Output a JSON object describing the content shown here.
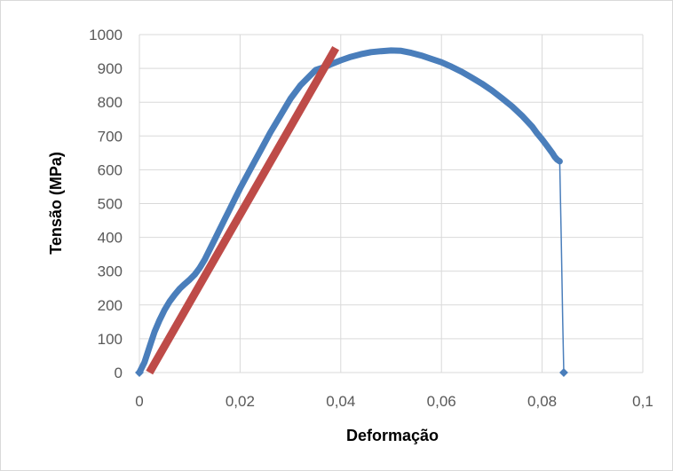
{
  "chart_data": {
    "type": "scatter",
    "title": "",
    "xlabel": "Deformação",
    "ylabel": "Tensão (MPa)",
    "xlim": [
      0,
      0.1
    ],
    "ylim": [
      0,
      1000
    ],
    "x_ticks": [
      0,
      0.02,
      0.04,
      0.06,
      0.08,
      0.1
    ],
    "x_tick_labels": [
      "0",
      "0,02",
      "0,04",
      "0,06",
      "0,08",
      "0,1"
    ],
    "y_ticks": [
      0,
      100,
      200,
      300,
      400,
      500,
      600,
      700,
      800,
      900,
      1000
    ],
    "y_tick_labels": [
      "0",
      "100",
      "200",
      "300",
      "400",
      "500",
      "600",
      "700",
      "800",
      "900",
      "1000"
    ],
    "grid": true,
    "legend": "none",
    "series": [
      {
        "color": "#4a7ebb",
        "style": "scatter-with-line",
        "x": [
          0,
          0.001,
          0.002,
          0.003,
          0.004,
          0.005,
          0.006,
          0.007,
          0.008,
          0.009,
          0.01,
          0.011,
          0.012,
          0.013,
          0.014,
          0.015,
          0.016,
          0.017,
          0.018,
          0.019,
          0.02,
          0.022,
          0.024,
          0.026,
          0.028,
          0.03,
          0.032,
          0.034,
          0.035,
          0.036,
          0.037,
          0.038,
          0.039,
          0.04,
          0.042,
          0.044,
          0.046,
          0.048,
          0.05,
          0.052,
          0.054,
          0.056,
          0.058,
          0.06,
          0.062,
          0.064,
          0.066,
          0.068,
          0.07,
          0.072,
          0.074,
          0.076,
          0.078,
          0.079,
          0.08,
          0.081,
          0.082,
          0.0825,
          0.083,
          0.0835,
          0.0835,
          0.0838,
          0.0841,
          0.0843
        ],
        "y": [
          0,
          30,
          75,
          120,
          155,
          185,
          210,
          230,
          248,
          262,
          275,
          290,
          310,
          335,
          365,
          395,
          425,
          455,
          485,
          515,
          545,
          600,
          655,
          710,
          760,
          810,
          850,
          880,
          895,
          900,
          905,
          912,
          918,
          924,
          934,
          942,
          948,
          951,
          953,
          952,
          946,
          938,
          928,
          918,
          905,
          890,
          873,
          855,
          835,
          812,
          788,
          760,
          728,
          708,
          690,
          670,
          650,
          638,
          630,
          625,
          625,
          400,
          150,
          0
        ]
      },
      {
        "color": "#be4b48",
        "style": "thick-line",
        "x": [
          0.002,
          0.039
        ],
        "y": [
          0,
          960
        ]
      }
    ]
  }
}
